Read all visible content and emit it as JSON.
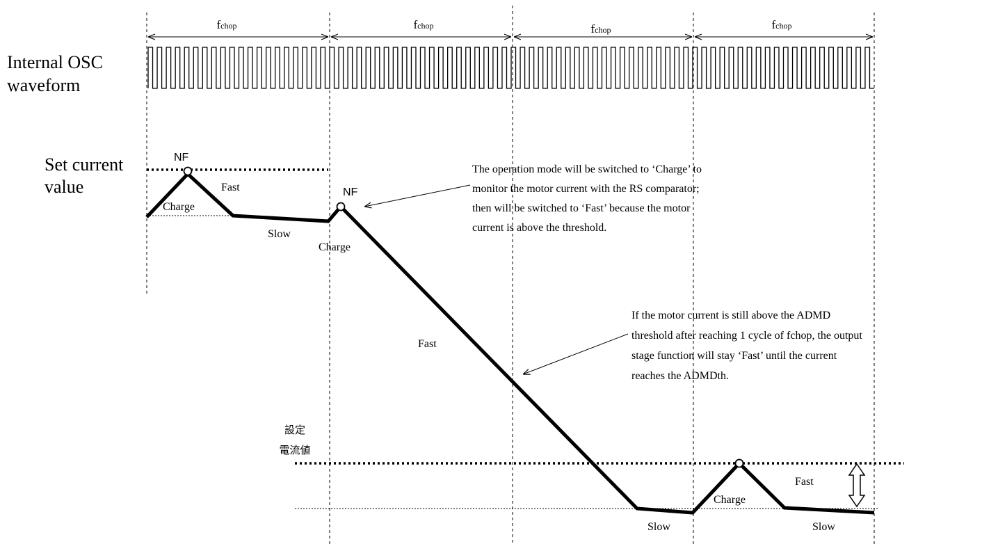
{
  "period_label": {
    "main": "f",
    "sub": "chop"
  },
  "osc_label": [
    "Internal OSC",
    "waveform"
  ],
  "set_current_label": [
    "Set current",
    "value"
  ],
  "jp_set_current_label": [
    "設定",
    "電流値"
  ],
  "nf_label": "NF",
  "mode_labels": {
    "charge": "Charge",
    "fast": "Fast",
    "slow": "Slow"
  },
  "notes": {
    "operation_mode": [
      "The operation mode will be switched to ‘Charge’ to",
      "monitor the motor current with the RS comparator;",
      "then will be switched to ‘Fast’ because the motor",
      "current is above the threshold."
    ],
    "admd": [
      "If the motor current is still above the ADMD",
      "threshold after reaching 1 cycle of fchop, the output",
      "stage function will stay ‘Fast’ until the current",
      "reaches the ADMDth."
    ]
  }
}
